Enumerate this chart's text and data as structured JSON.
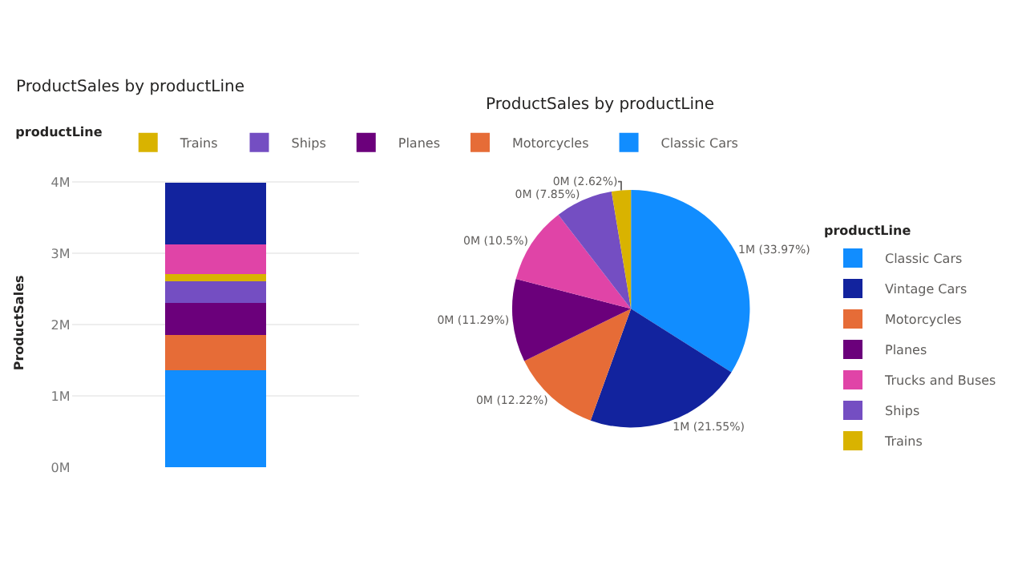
{
  "chart_data": [
    {
      "type": "bar",
      "title": "ProductSales by productLine",
      "ylabel": "ProductSales",
      "legend_title": "productLine",
      "stacked": true,
      "categories": [
        null
      ],
      "series": [
        {
          "name": "Classic Cars",
          "color": "#118dff",
          "values": [
            1.36
          ]
        },
        {
          "name": "Motorcycles",
          "color": "#e66c37",
          "values": [
            0.49
          ]
        },
        {
          "name": "Planes",
          "color": "#6b007b",
          "values": [
            0.45
          ]
        },
        {
          "name": "Ships",
          "color": "#744ec2",
          "values": [
            0.31
          ]
        },
        {
          "name": "Trains",
          "color": "#d9b300",
          "values": [
            0.1
          ]
        },
        {
          "color": "#e044a7",
          "values": [
            0.42
          ]
        },
        {
          "color": "#12239e",
          "values": [
            0.86
          ]
        }
      ],
      "ylim": [
        0,
        4.05
      ],
      "yticks": [
        {
          "value": 0,
          "label": "0M"
        },
        {
          "value": 1,
          "label": "1M"
        },
        {
          "value": 2,
          "label": "2M"
        },
        {
          "value": 3,
          "label": "3M"
        },
        {
          "value": 4,
          "label": "4M"
        }
      ],
      "grid": "y",
      "legend": "top",
      "tick_labels": "y"
    },
    {
      "type": "pie",
      "title": "ProductSales by productLine",
      "legend_title": "productLine",
      "categories": [
        "Classic Cars",
        "Vintage Cars",
        "Motorcycles",
        "Planes",
        "Trucks and Buses",
        "Ships",
        "Trains"
      ],
      "values": [
        33.97,
        21.55,
        12.22,
        11.29,
        10.5,
        7.85,
        2.62
      ],
      "colors": [
        "#118dff",
        "#12239e",
        "#e66c37",
        "#6b007b",
        "#e044a7",
        "#744ec2",
        "#d9b300"
      ],
      "value_labels": [
        "1M (33.97%)",
        "1M (21.55%)",
        "0M (12.22%)",
        "0M (11.29%)",
        "0M (10.5%)",
        "0M (7.85%)",
        "0M (2.62%)"
      ],
      "legend": "right"
    }
  ]
}
